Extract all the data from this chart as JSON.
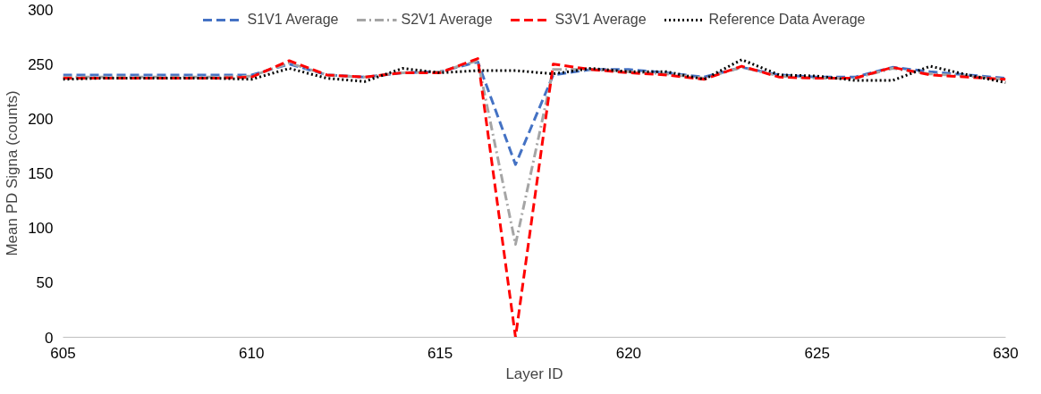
{
  "chart_data": {
    "type": "line",
    "xlabel": "Layer ID",
    "ylabel": "Mean PD Signa (counts)",
    "x": [
      605,
      606,
      607,
      608,
      609,
      610,
      611,
      612,
      613,
      614,
      615,
      616,
      617,
      618,
      619,
      620,
      621,
      622,
      623,
      624,
      625,
      626,
      627,
      628,
      629,
      630
    ],
    "xlim": [
      605,
      630
    ],
    "xticks": [
      605,
      610,
      615,
      620,
      625,
      630
    ],
    "ylim": [
      0,
      300
    ],
    "yticks": [
      0,
      50,
      100,
      150,
      200,
      250,
      300
    ],
    "grid": false,
    "legend": "top",
    "marker": "none",
    "series": [
      {
        "name": "S1V1 Average",
        "color": "#4472c4",
        "line_style": "dashed",
        "values": [
          240,
          240,
          240,
          240,
          240,
          240,
          250,
          240,
          238,
          242,
          243,
          252,
          158,
          240,
          245,
          245,
          242,
          238,
          247,
          240,
          238,
          238,
          247,
          243,
          240,
          237
        ]
      },
      {
        "name": "S2V1 Average",
        "color": "#a5a5a5",
        "line_style": "dashdot",
        "values": [
          238,
          238,
          238,
          238,
          238,
          239,
          251,
          240,
          238,
          242,
          243,
          253,
          85,
          245,
          245,
          243,
          241,
          237,
          247,
          239,
          237,
          237,
          246,
          241,
          239,
          236
        ]
      },
      {
        "name": "S3V1 Average",
        "color": "#ff0000",
        "line_style": "dashed",
        "values": [
          237,
          237,
          237,
          237,
          237,
          238,
          253,
          240,
          238,
          242,
          242,
          255,
          0,
          250,
          245,
          242,
          240,
          236,
          248,
          238,
          237,
          237,
          247,
          240,
          238,
          236
        ]
      },
      {
        "name": "Reference Data Average",
        "color": "#000000",
        "line_style": "dotted",
        "values": [
          236,
          237,
          237,
          237,
          237,
          236,
          246,
          237,
          234,
          246,
          242,
          244,
          244,
          241,
          246,
          243,
          243,
          236,
          254,
          240,
          239,
          235,
          235,
          248,
          240,
          233
        ]
      }
    ]
  }
}
